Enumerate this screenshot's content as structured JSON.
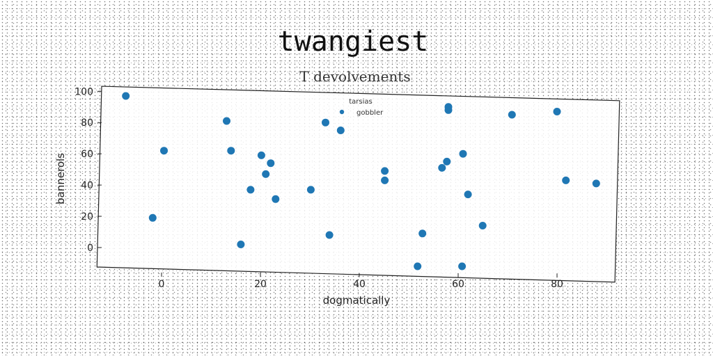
{
  "chart_data": {
    "type": "scatter",
    "title": "twangiest",
    "subtitle": "T devolvements",
    "xlabel": "dogmatically",
    "ylabel": "bannerols",
    "xlim": [
      -12.5,
      93
    ],
    "ylim": [
      -13,
      103
    ],
    "xticks": [
      0,
      20,
      40,
      60,
      80
    ],
    "yticks": [
      0,
      20,
      40,
      60,
      80,
      100
    ],
    "grid": false,
    "legend": {
      "title": "tarsias",
      "placement": "top-center"
    },
    "colors": {
      "series": "#1f77b4"
    },
    "series": [
      {
        "name": "gobbler",
        "points": [
          [
            -7.3,
            97
          ],
          [
            0.5,
            62
          ],
          [
            -1.8,
            19
          ],
          [
            13.3,
            81
          ],
          [
            14.2,
            62
          ],
          [
            16.2,
            2
          ],
          [
            18.2,
            37
          ],
          [
            20.4,
            59
          ],
          [
            21.3,
            47
          ],
          [
            22.3,
            54
          ],
          [
            23.3,
            31
          ],
          [
            30.5,
            37
          ],
          [
            33.5,
            80
          ],
          [
            34.3,
            8
          ],
          [
            36.6,
            75
          ],
          [
            45.6,
            49
          ],
          [
            45.6,
            43
          ],
          [
            52.3,
            -12
          ],
          [
            53.3,
            9
          ],
          [
            57.3,
            51
          ],
          [
            58.3,
            55
          ],
          [
            58.6,
            88
          ],
          [
            58.6,
            90
          ],
          [
            61.4,
            -12
          ],
          [
            61.6,
            60
          ],
          [
            62.6,
            34
          ],
          [
            65.6,
            14
          ],
          [
            71.6,
            85
          ],
          [
            80.8,
            87
          ],
          [
            82.6,
            43
          ],
          [
            88.8,
            41
          ]
        ]
      }
    ]
  }
}
